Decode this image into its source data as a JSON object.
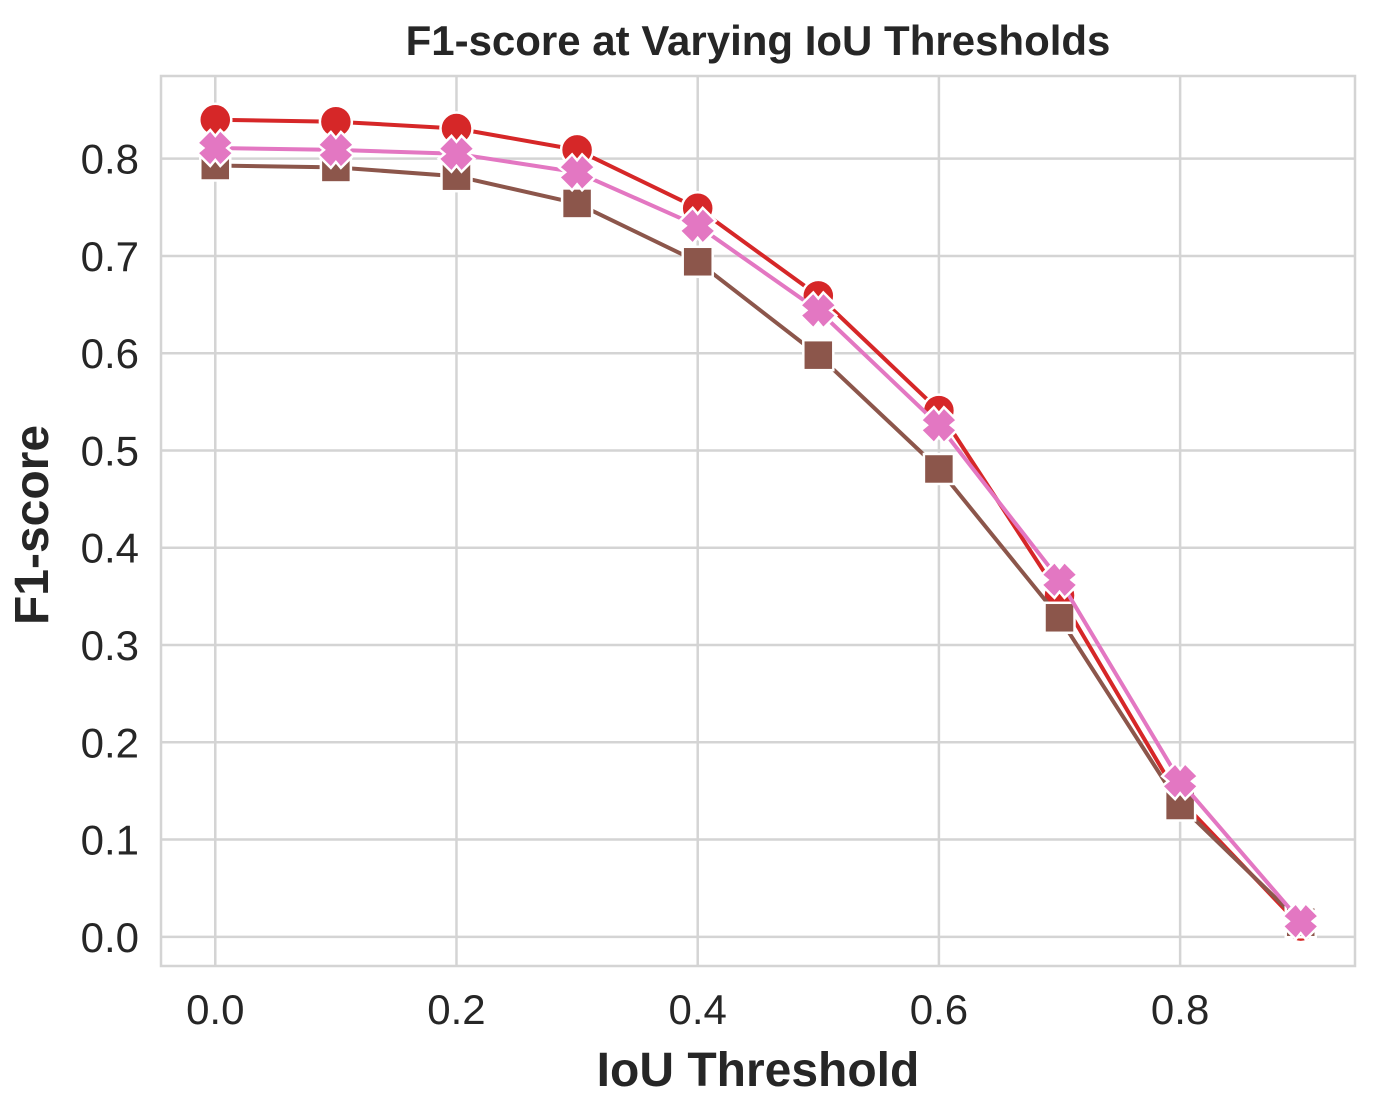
{
  "chart_data": {
    "type": "line",
    "title": "F1-score at Varying IoU Thresholds",
    "xlabel": "IoU Threshold",
    "ylabel": "F1-score",
    "x": [
      0.0,
      0.1,
      0.2,
      0.3,
      0.4,
      0.5,
      0.6,
      0.7,
      0.8,
      0.9
    ],
    "xlim": [
      -0.045,
      0.945
    ],
    "ylim": [
      -0.03,
      0.885
    ],
    "x_ticks": [
      "0.0",
      "0.2",
      "0.4",
      "0.6",
      "0.8"
    ],
    "x_tick_values": [
      0.0,
      0.2,
      0.4,
      0.6,
      0.8
    ],
    "y_ticks": [
      "0.0",
      "0.1",
      "0.2",
      "0.3",
      "0.4",
      "0.5",
      "0.6",
      "0.7",
      "0.8"
    ],
    "y_tick_values": [
      0.0,
      0.1,
      0.2,
      0.3,
      0.4,
      0.5,
      0.6,
      0.7,
      0.8
    ],
    "grid": true,
    "series": [
      {
        "key": "red-circle",
        "marker": "circle",
        "color": "#d62728",
        "values": [
          0.84,
          0.838,
          0.831,
          0.809,
          0.749,
          0.659,
          0.541,
          0.351,
          0.141,
          0.011
        ]
      },
      {
        "key": "brown-square",
        "marker": "square",
        "color": "#8c564b",
        "values": [
          0.793,
          0.791,
          0.782,
          0.754,
          0.694,
          0.598,
          0.481,
          0.328,
          0.135,
          0.015
        ]
      },
      {
        "key": "pink-cross",
        "marker": "x",
        "color": "#e377c2",
        "values": [
          0.811,
          0.809,
          0.805,
          0.786,
          0.731,
          0.644,
          0.526,
          0.367,
          0.16,
          0.016
        ]
      }
    ]
  }
}
